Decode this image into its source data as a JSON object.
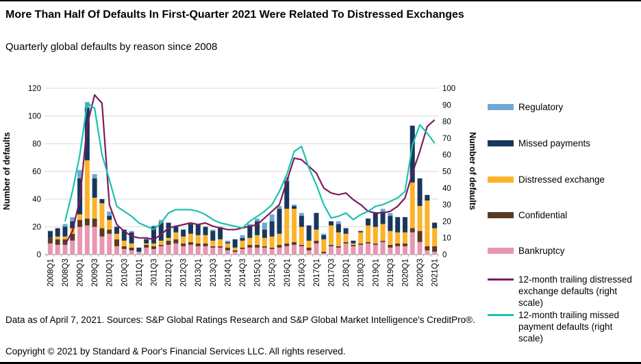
{
  "header": {
    "title": "More Than Half Of Defaults In First-Quarter 2021 Were Related To Distressed Exchanges",
    "subtitle": "Quarterly global defaults by reason since 2008"
  },
  "footer": {
    "source_line": "Data as of April 7, 2021. Sources: S&P Global Ratings Research and S&P Global Market Intelligence's CreditPro®.",
    "copyright_line": "Copyright © 2021 by Standard & Poor's Financial Services LLC. All rights reserved."
  },
  "chart_data": {
    "type": "bar",
    "subtype": "stacked-bars-with-lines",
    "grid": true,
    "legend_position": "right",
    "axes": {
      "left": {
        "title": "Number of defaults",
        "min": 0,
        "max": 120,
        "step": 20
      },
      "right": {
        "title": "Number of defaults",
        "min": 0,
        "max": 100,
        "step": 10
      }
    },
    "categories": [
      "2008Q1",
      "2008Q2",
      "2008Q3",
      "2008Q4",
      "2009Q1",
      "2009Q2",
      "2009Q3",
      "2009Q4",
      "2010Q1",
      "2010Q2",
      "2010Q3",
      "2010Q4",
      "2011Q1",
      "2011Q2",
      "2011Q3",
      "2011Q4",
      "2012Q1",
      "2012Q2",
      "2012Q3",
      "2012Q4",
      "2013Q1",
      "2013Q2",
      "2013Q3",
      "2013Q4",
      "2014Q1",
      "2014Q2",
      "2014Q3",
      "2014Q4",
      "2015Q1",
      "2015Q2",
      "2015Q3",
      "2015Q4",
      "2016Q1",
      "2016Q2",
      "2016Q3",
      "2016Q4",
      "2017Q1",
      "2017Q2",
      "2017Q3",
      "2017Q4",
      "2018Q1",
      "2018Q2",
      "2018Q3",
      "2018Q4",
      "2019Q1",
      "2019Q2",
      "2019Q3",
      "2019Q4",
      "2020Q1",
      "2020Q2",
      "2020Q3",
      "2020Q4",
      "2021Q1"
    ],
    "x_label_every": 2,
    "series": [
      {
        "name": "Bankruptcy",
        "color": "#E897B1",
        "values": [
          8,
          7,
          7,
          10,
          20,
          21,
          20,
          13,
          15,
          6,
          4,
          3,
          2,
          5,
          4,
          6,
          7,
          8,
          6,
          7,
          6,
          6,
          5,
          5,
          3,
          2,
          4,
          5,
          5,
          5,
          4,
          5,
          6,
          7,
          6,
          3,
          8,
          1,
          6,
          5,
          8,
          6,
          7,
          8,
          7,
          9,
          5,
          6,
          6,
          16,
          9,
          3,
          2
        ]
      },
      {
        "name": "Confidential",
        "color": "#5A3A22",
        "values": [
          4,
          4,
          4,
          5,
          5,
          5,
          6,
          6,
          3,
          5,
          2,
          2,
          0,
          2,
          2,
          1,
          3,
          3,
          2,
          2,
          2,
          2,
          1,
          1,
          2,
          1,
          1,
          2,
          2,
          1,
          1,
          2,
          2,
          2,
          1,
          2,
          2,
          1,
          1,
          1,
          1,
          1,
          1,
          1,
          1,
          1,
          2,
          2,
          2,
          3,
          8,
          3,
          4
        ]
      },
      {
        "name": "Distressed exchange",
        "color": "#FCB32B",
        "values": [
          0,
          2,
          2,
          4,
          4,
          42,
          15,
          18,
          7,
          4,
          4,
          3,
          0,
          1,
          2,
          3,
          2,
          5,
          5,
          6,
          6,
          6,
          4,
          5,
          3,
          2,
          5,
          5,
          7,
          6,
          8,
          8,
          25,
          24,
          13,
          5,
          8,
          9,
          14,
          10,
          6,
          1,
          8,
          12,
          12,
          12,
          10,
          8,
          8,
          33,
          18,
          33,
          13
        ]
      },
      {
        "name": "Missed payments",
        "color": "#17375D",
        "values": [
          5,
          6,
          7,
          5,
          26,
          38,
          14,
          3,
          3,
          5,
          8,
          8,
          3,
          3,
          12,
          13,
          11,
          4,
          5,
          7,
          8,
          6,
          7,
          8,
          1,
          6,
          2,
          9,
          10,
          6,
          11,
          18,
          20,
          2,
          8,
          11,
          12,
          3,
          3,
          6,
          4,
          2,
          1,
          5,
          10,
          9,
          11,
          11,
          11,
          41,
          20,
          4,
          4
        ]
      },
      {
        "name": "Regulatory",
        "color": "#6FA8D2",
        "values": [
          0,
          0,
          2,
          3,
          6,
          4,
          3,
          0,
          3,
          0,
          0,
          1,
          0,
          1,
          1,
          2,
          0,
          1,
          0,
          1,
          0,
          0,
          1,
          1,
          1,
          0,
          2,
          1,
          2,
          5,
          5,
          2,
          3,
          1,
          2,
          0,
          0,
          1,
          0,
          2,
          0,
          0,
          0,
          0,
          0,
          2,
          2,
          0,
          0,
          0,
          0,
          0,
          0
        ]
      }
    ],
    "lines": [
      {
        "name": "12-month trailing distressed exchange defaults (right scale)",
        "color": "#7D1A5F",
        "axis": "right",
        "values": [
          null,
          null,
          6,
          14,
          33,
          78,
          96,
          91,
          30,
          18,
          14,
          11,
          10,
          10,
          9,
          12,
          16,
          17,
          18,
          19,
          18,
          19,
          17,
          16,
          15,
          15,
          16,
          17,
          18,
          22,
          26,
          30,
          44,
          58,
          57,
          53,
          49,
          40,
          37,
          36,
          37,
          33,
          30,
          26,
          25,
          25,
          26,
          29,
          34,
          49,
          62,
          77,
          81
        ]
      },
      {
        "name": "12-month trailing missed payment defaults (right scale)",
        "color": "#1CC1AF",
        "axis": "right",
        "values": [
          null,
          null,
          20,
          38,
          60,
          91,
          88,
          60,
          45,
          29,
          26,
          23,
          19,
          17,
          15,
          19,
          25,
          27,
          27,
          27,
          26,
          24,
          21,
          19,
          18,
          17,
          16,
          20,
          23,
          26,
          30,
          38,
          48,
          62,
          65,
          52,
          42,
          30,
          22,
          23,
          25,
          21,
          24,
          26,
          29,
          30,
          32,
          34,
          38,
          66,
          78,
          73,
          67
        ]
      }
    ],
    "legend": [
      {
        "label": "Regulatory",
        "color": "#6FA8D2",
        "type": "swatch"
      },
      {
        "label": "Missed payments",
        "color": "#17375D",
        "type": "swatch"
      },
      {
        "label": "Distressed exchange",
        "color": "#FCB32B",
        "type": "swatch"
      },
      {
        "label": "Confidential",
        "color": "#5A3A22",
        "type": "swatch"
      },
      {
        "label": "Bankruptcy",
        "color": "#E897B1",
        "type": "swatch"
      },
      {
        "label": "12-month trailing distressed exchange defaults (right scale)",
        "color": "#7D1A5F",
        "type": "line"
      },
      {
        "label": "12-month trailing missed payment defaults (right scale)",
        "color": "#1CC1AF",
        "type": "line"
      }
    ]
  }
}
